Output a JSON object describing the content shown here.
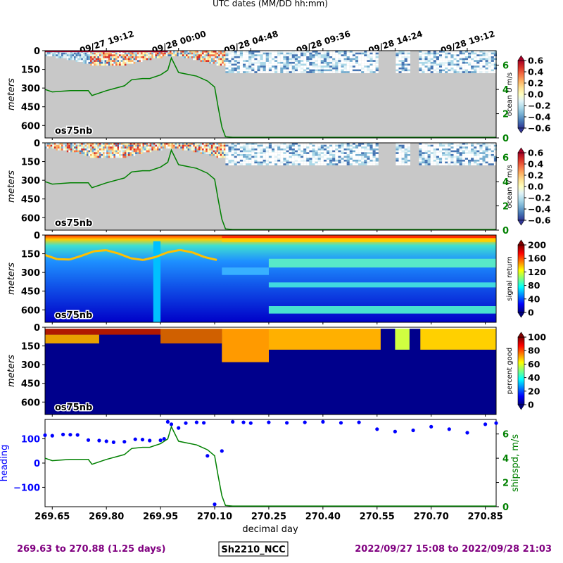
{
  "chart_data": {
    "type": "heatmap",
    "top_axis": {
      "title": "UTC dates (MM/DD hh:mm)",
      "ticks": [
        {
          "value": 269.8,
          "label": "09/27 19:12"
        },
        {
          "value": 270.0,
          "label": "09/28 00:00"
        },
        {
          "value": 270.2,
          "label": "09/28 04:48"
        },
        {
          "value": 270.4,
          "label": "09/28 09:36"
        },
        {
          "value": 270.6,
          "label": "09/28 14:24"
        },
        {
          "value": 270.8,
          "label": "09/28 19:12"
        }
      ]
    },
    "xlabel": "decimal day",
    "xlim": [
      269.63,
      270.88
    ],
    "x_ticks": [
      269.65,
      269.8,
      269.95,
      270.1,
      270.25,
      270.4,
      270.55,
      270.7,
      270.85
    ],
    "x_tick_labels": [
      "269.65",
      "269.80",
      "269.95",
      "270.10",
      "270.25",
      "270.40",
      "270.55",
      "270.70",
      "270.85"
    ],
    "depth_axis": {
      "label": "meters",
      "ylim": [
        700,
        0
      ],
      "ticks": [
        0,
        150,
        300,
        450,
        600
      ],
      "tick_labels": [
        "0",
        "150",
        "300",
        "450",
        "600"
      ]
    },
    "panels": [
      {
        "tag": "os75nb",
        "colorbar_label": "ocean U m/s",
        "colorbar_range": [
          -0.6,
          0.6
        ],
        "colorbar_ticks": [
          0.6,
          0.4,
          0.2,
          0.0,
          -0.2,
          -0.4,
          -0.6
        ],
        "colorbar_tick_labels": [
          "0.6",
          "0.4",
          "0.2",
          "0.0",
          "−0.2",
          "−0.4",
          "−0.6"
        ],
        "colormap": "RdYlBu_r",
        "shipspd_axis_ticks": [
          0,
          2,
          4,
          6
        ],
        "shipspd_axis_labels": [
          "0",
          "2",
          "4",
          "6"
        ]
      },
      {
        "tag": "os75nb",
        "colorbar_label": "ocean V m/s",
        "colorbar_range": [
          -0.6,
          0.6
        ],
        "colorbar_ticks": [
          0.6,
          0.4,
          0.2,
          0.0,
          -0.2,
          -0.4,
          -0.6
        ],
        "colorbar_tick_labels": [
          "0.6",
          "0.4",
          "0.2",
          "0.0",
          "−0.2",
          "−0.4",
          "−0.6"
        ],
        "colormap": "RdYlBu_r",
        "shipspd_axis_ticks": [
          0,
          2,
          4,
          6
        ],
        "shipspd_axis_labels": [
          "0",
          "2",
          "4",
          "6"
        ]
      },
      {
        "tag": "os75nb",
        "colorbar_label": "signal return",
        "colorbar_range": [
          0,
          200
        ],
        "colorbar_ticks": [
          200,
          160,
          120,
          80,
          40,
          0
        ],
        "colorbar_tick_labels": [
          "200",
          "160",
          "120",
          "80",
          "40",
          "0"
        ],
        "colormap": "jet"
      },
      {
        "tag": "os75nb",
        "colorbar_label": "percent good",
        "colorbar_range": [
          0,
          100
        ],
        "colorbar_ticks": [
          100,
          80,
          60,
          40,
          20,
          0
        ],
        "colorbar_tick_labels": [
          "100",
          "80",
          "60",
          "40",
          "20",
          "0"
        ],
        "colormap": "jet"
      }
    ],
    "shipspd_series": {
      "color": "#008000",
      "x": [
        269.63,
        269.65,
        269.7,
        269.75,
        269.76,
        269.8,
        269.85,
        269.87,
        269.9,
        269.92,
        269.95,
        269.97,
        269.98,
        270.0,
        270.05,
        270.08,
        270.1,
        270.11,
        270.12,
        270.13,
        270.15,
        270.2,
        270.3,
        270.4,
        270.5,
        270.6,
        270.7,
        270.8,
        270.88
      ],
      "y": [
        4.0,
        3.8,
        3.9,
        3.9,
        3.5,
        3.9,
        4.3,
        4.8,
        4.9,
        4.9,
        5.2,
        5.6,
        6.6,
        5.4,
        5.1,
        4.7,
        4.2,
        2.5,
        0.9,
        0.1,
        0.05,
        0.05,
        0.05,
        0.05,
        0.05,
        0.05,
        0.05,
        0.05,
        0.05
      ]
    },
    "heading_panel": {
      "ylabel": "heading",
      "ylabel_color": "#0000ff",
      "ylim": [
        -180,
        180
      ],
      "yticks": [
        100,
        0,
        -100
      ],
      "ytick_labels": [
        "100",
        "0",
        "−100"
      ],
      "right_ylabel": "shipspd, m/s",
      "right_ylabel_color": "#008000",
      "right_ylim": [
        0,
        7.2
      ],
      "right_ticks": [
        0,
        2,
        4,
        6
      ],
      "right_tick_labels": [
        "0",
        "2",
        "4",
        "6"
      ],
      "heading_series": {
        "color": "#0000ff",
        "x": [
          269.63,
          269.65,
          269.68,
          269.7,
          269.72,
          269.75,
          269.78,
          269.8,
          269.82,
          269.85,
          269.88,
          269.9,
          269.92,
          269.95,
          269.96,
          269.97,
          269.98,
          270.0,
          270.02,
          270.05,
          270.07,
          270.08,
          270.1,
          270.12,
          270.15,
          270.18,
          270.2,
          270.25,
          270.3,
          270.35,
          270.4,
          270.45,
          270.5,
          270.55,
          270.6,
          270.65,
          270.7,
          270.75,
          270.8,
          270.85,
          270.88
        ],
        "y": [
          115,
          113,
          118,
          117,
          116,
          95,
          93,
          90,
          86,
          88,
          98,
          97,
          93,
          94,
          100,
          170,
          160,
          145,
          165,
          168,
          166,
          30,
          -170,
          50,
          170,
          168,
          165,
          168,
          166,
          168,
          170,
          166,
          168,
          140,
          130,
          135,
          150,
          140,
          125,
          160,
          165
        ]
      }
    },
    "footer": {
      "left": "269.63 to 270.88 (1.25 days)",
      "center": "Sh2210_NCC",
      "right": "2022/09/27 15:08 to 2022/09/28 21:03",
      "color": "#800080"
    }
  }
}
